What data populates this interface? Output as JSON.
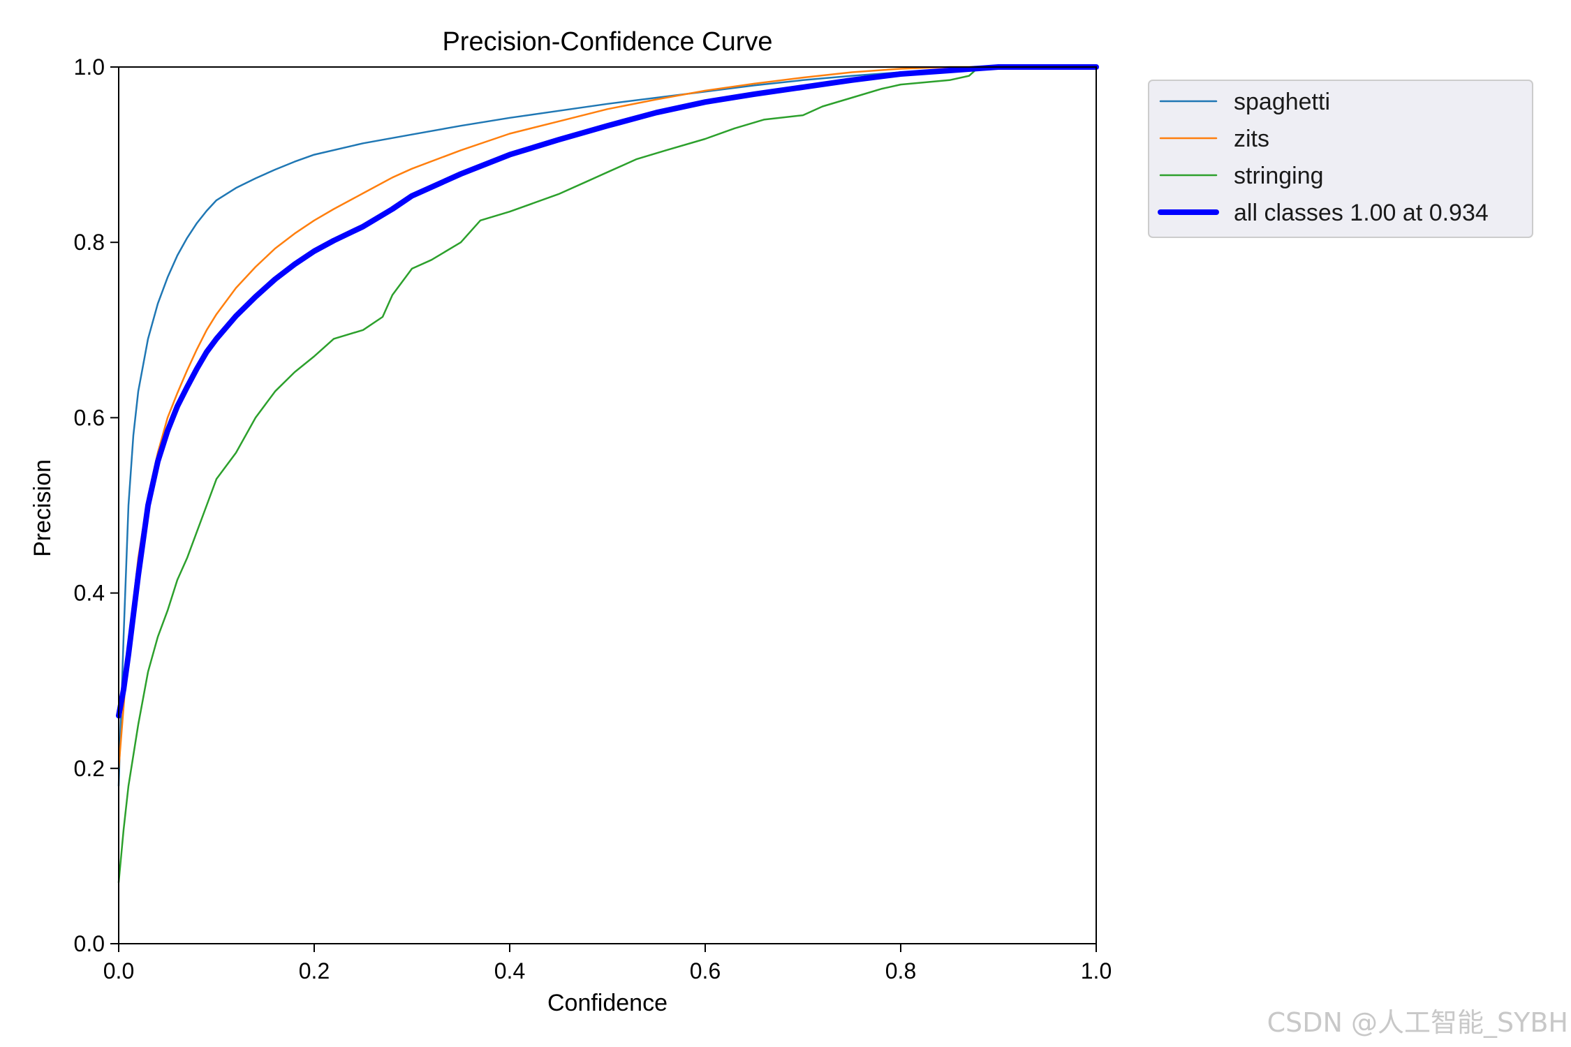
{
  "chart_data": {
    "type": "line",
    "title": "Precision-Confidence Curve",
    "xlabel": "Confidence",
    "ylabel": "Precision",
    "xlim": [
      0,
      1
    ],
    "ylim": [
      0,
      1
    ],
    "xticks": [
      "0.0",
      "0.2",
      "0.4",
      "0.6",
      "0.8",
      "1.0"
    ],
    "yticks": [
      "0.0",
      "0.2",
      "0.4",
      "0.6",
      "0.8",
      "1.0"
    ],
    "grid": false,
    "legend_position": "outside-top-right",
    "series": [
      {
        "name": "spaghetti",
        "color": "#1f77b4",
        "points": [
          [
            0,
            0.18
          ],
          [
            0.005,
            0.35
          ],
          [
            0.01,
            0.5
          ],
          [
            0.015,
            0.58
          ],
          [
            0.02,
            0.63
          ],
          [
            0.03,
            0.69
          ],
          [
            0.04,
            0.73
          ],
          [
            0.05,
            0.76
          ],
          [
            0.06,
            0.785
          ],
          [
            0.07,
            0.805
          ],
          [
            0.08,
            0.822
          ],
          [
            0.09,
            0.836
          ],
          [
            0.1,
            0.848
          ],
          [
            0.12,
            0.862
          ],
          [
            0.14,
            0.873
          ],
          [
            0.16,
            0.883
          ],
          [
            0.18,
            0.892
          ],
          [
            0.2,
            0.9
          ],
          [
            0.25,
            0.913
          ],
          [
            0.3,
            0.923
          ],
          [
            0.35,
            0.933
          ],
          [
            0.4,
            0.942
          ],
          [
            0.45,
            0.95
          ],
          [
            0.5,
            0.958
          ],
          [
            0.55,
            0.965
          ],
          [
            0.6,
            0.972
          ],
          [
            0.65,
            0.979
          ],
          [
            0.7,
            0.985
          ],
          [
            0.75,
            0.99
          ],
          [
            0.8,
            0.994
          ],
          [
            0.85,
            0.997
          ],
          [
            0.9,
            1.0
          ],
          [
            1.0,
            1.0
          ]
        ]
      },
      {
        "name": "zits",
        "color": "#ff7f0e",
        "points": [
          [
            0,
            0.2
          ],
          [
            0.005,
            0.27
          ],
          [
            0.01,
            0.34
          ],
          [
            0.02,
            0.44
          ],
          [
            0.03,
            0.51
          ],
          [
            0.04,
            0.56
          ],
          [
            0.05,
            0.6
          ],
          [
            0.06,
            0.628
          ],
          [
            0.07,
            0.654
          ],
          [
            0.08,
            0.678
          ],
          [
            0.09,
            0.7
          ],
          [
            0.1,
            0.718
          ],
          [
            0.12,
            0.748
          ],
          [
            0.14,
            0.772
          ],
          [
            0.16,
            0.793
          ],
          [
            0.18,
            0.81
          ],
          [
            0.2,
            0.825
          ],
          [
            0.22,
            0.838
          ],
          [
            0.25,
            0.856
          ],
          [
            0.28,
            0.874
          ],
          [
            0.3,
            0.884
          ],
          [
            0.35,
            0.905
          ],
          [
            0.4,
            0.924
          ],
          [
            0.45,
            0.938
          ],
          [
            0.5,
            0.952
          ],
          [
            0.55,
            0.963
          ],
          [
            0.6,
            0.973
          ],
          [
            0.65,
            0.981
          ],
          [
            0.7,
            0.988
          ],
          [
            0.75,
            0.994
          ],
          [
            0.8,
            0.998
          ],
          [
            0.85,
            1.0
          ],
          [
            1.0,
            1.0
          ]
        ]
      },
      {
        "name": "stringing",
        "color": "#2ca02c",
        "points": [
          [
            0,
            0.07
          ],
          [
            0.005,
            0.13
          ],
          [
            0.01,
            0.18
          ],
          [
            0.02,
            0.25
          ],
          [
            0.03,
            0.31
          ],
          [
            0.04,
            0.35
          ],
          [
            0.05,
            0.38
          ],
          [
            0.06,
            0.415
          ],
          [
            0.07,
            0.44
          ],
          [
            0.08,
            0.47
          ],
          [
            0.09,
            0.5
          ],
          [
            0.1,
            0.53
          ],
          [
            0.12,
            0.56
          ],
          [
            0.14,
            0.6
          ],
          [
            0.16,
            0.63
          ],
          [
            0.18,
            0.652
          ],
          [
            0.2,
            0.67
          ],
          [
            0.22,
            0.69
          ],
          [
            0.25,
            0.7
          ],
          [
            0.27,
            0.715
          ],
          [
            0.28,
            0.74
          ],
          [
            0.3,
            0.77
          ],
          [
            0.32,
            0.78
          ],
          [
            0.35,
            0.8
          ],
          [
            0.37,
            0.825
          ],
          [
            0.4,
            0.835
          ],
          [
            0.45,
            0.855
          ],
          [
            0.48,
            0.87
          ],
          [
            0.5,
            0.88
          ],
          [
            0.53,
            0.895
          ],
          [
            0.56,
            0.905
          ],
          [
            0.6,
            0.918
          ],
          [
            0.63,
            0.93
          ],
          [
            0.66,
            0.94
          ],
          [
            0.7,
            0.945
          ],
          [
            0.72,
            0.955
          ],
          [
            0.75,
            0.965
          ],
          [
            0.78,
            0.975
          ],
          [
            0.8,
            0.98
          ],
          [
            0.85,
            0.985
          ],
          [
            0.87,
            0.99
          ],
          [
            0.88,
            1.0
          ],
          [
            1.0,
            1.0
          ]
        ]
      },
      {
        "name": "all classes 1.00 at 0.934",
        "color": "#0000ff",
        "points": [
          [
            0,
            0.26
          ],
          [
            0.005,
            0.29
          ],
          [
            0.01,
            0.33
          ],
          [
            0.02,
            0.42
          ],
          [
            0.03,
            0.5
          ],
          [
            0.04,
            0.55
          ],
          [
            0.05,
            0.585
          ],
          [
            0.06,
            0.613
          ],
          [
            0.07,
            0.635
          ],
          [
            0.08,
            0.656
          ],
          [
            0.09,
            0.675
          ],
          [
            0.1,
            0.69
          ],
          [
            0.12,
            0.716
          ],
          [
            0.14,
            0.738
          ],
          [
            0.16,
            0.758
          ],
          [
            0.18,
            0.775
          ],
          [
            0.2,
            0.79
          ],
          [
            0.22,
            0.802
          ],
          [
            0.25,
            0.818
          ],
          [
            0.28,
            0.838
          ],
          [
            0.3,
            0.853
          ],
          [
            0.35,
            0.878
          ],
          [
            0.4,
            0.9
          ],
          [
            0.45,
            0.917
          ],
          [
            0.5,
            0.933
          ],
          [
            0.55,
            0.948
          ],
          [
            0.6,
            0.96
          ],
          [
            0.65,
            0.969
          ],
          [
            0.7,
            0.977
          ],
          [
            0.75,
            0.985
          ],
          [
            0.8,
            0.992
          ],
          [
            0.85,
            0.996
          ],
          [
            0.9,
            1.0
          ],
          [
            1.0,
            1.0
          ]
        ]
      }
    ]
  },
  "watermark": "CSDN @人工智能_SYBH"
}
